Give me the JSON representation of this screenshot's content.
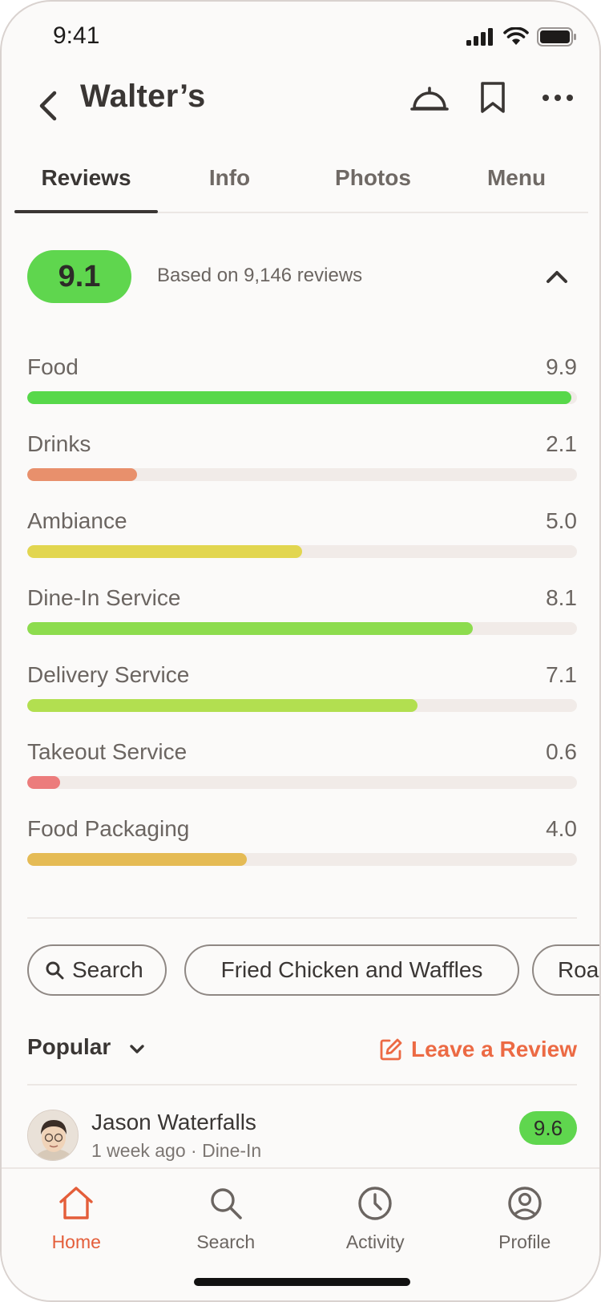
{
  "status_bar": {
    "time": "9:41"
  },
  "header": {
    "title": "Walter’s"
  },
  "tabs": [
    {
      "label": "Reviews",
      "active": true
    },
    {
      "label": "Info",
      "active": false
    },
    {
      "label": "Photos",
      "active": false
    },
    {
      "label": "Menu",
      "active": false
    }
  ],
  "summary": {
    "score": "9.1",
    "based_on": "Based on 9,146 reviews",
    "score_color": "#5fd64e"
  },
  "ratings": [
    {
      "label": "Food",
      "value": "9.9",
      "fraction": 0.99,
      "color": "#57d84a"
    },
    {
      "label": "Drinks",
      "value": "2.1",
      "fraction": 0.2,
      "color": "#e8906c"
    },
    {
      "label": "Ambiance",
      "value": "5.0",
      "fraction": 0.5,
      "color": "#e2d650"
    },
    {
      "label": "Dine-In Service",
      "value": "8.1",
      "fraction": 0.81,
      "color": "#8ddc4e"
    },
    {
      "label": "Delivery Service",
      "value": "7.1",
      "fraction": 0.71,
      "color": "#b2df50"
    },
    {
      "label": "Takeout Service",
      "value": "0.6",
      "fraction": 0.06,
      "color": "#ec7c7c"
    },
    {
      "label": "Food Packaging",
      "value": "4.0",
      "fraction": 0.4,
      "color": "#e5bb55"
    }
  ],
  "chips": [
    {
      "label": "Search",
      "icon": "search-icon"
    },
    {
      "label": "Fried Chicken and Waffles"
    },
    {
      "label": "Roast"
    }
  ],
  "sort": {
    "label": "Popular"
  },
  "leave_review": {
    "label": "Leave a Review",
    "color": "#ec6a44"
  },
  "review": {
    "name": "Jason Waterfalls",
    "meta": "1 week ago · Dine-In",
    "score": "9.6"
  },
  "tab_bar": [
    {
      "label": "Home",
      "icon": "home-icon",
      "active": true
    },
    {
      "label": "Search",
      "icon": "search-icon",
      "active": false
    },
    {
      "label": "Activity",
      "icon": "clock-icon",
      "active": false
    },
    {
      "label": "Profile",
      "icon": "profile-icon",
      "active": false
    }
  ],
  "accent_color": "#e45e3a"
}
